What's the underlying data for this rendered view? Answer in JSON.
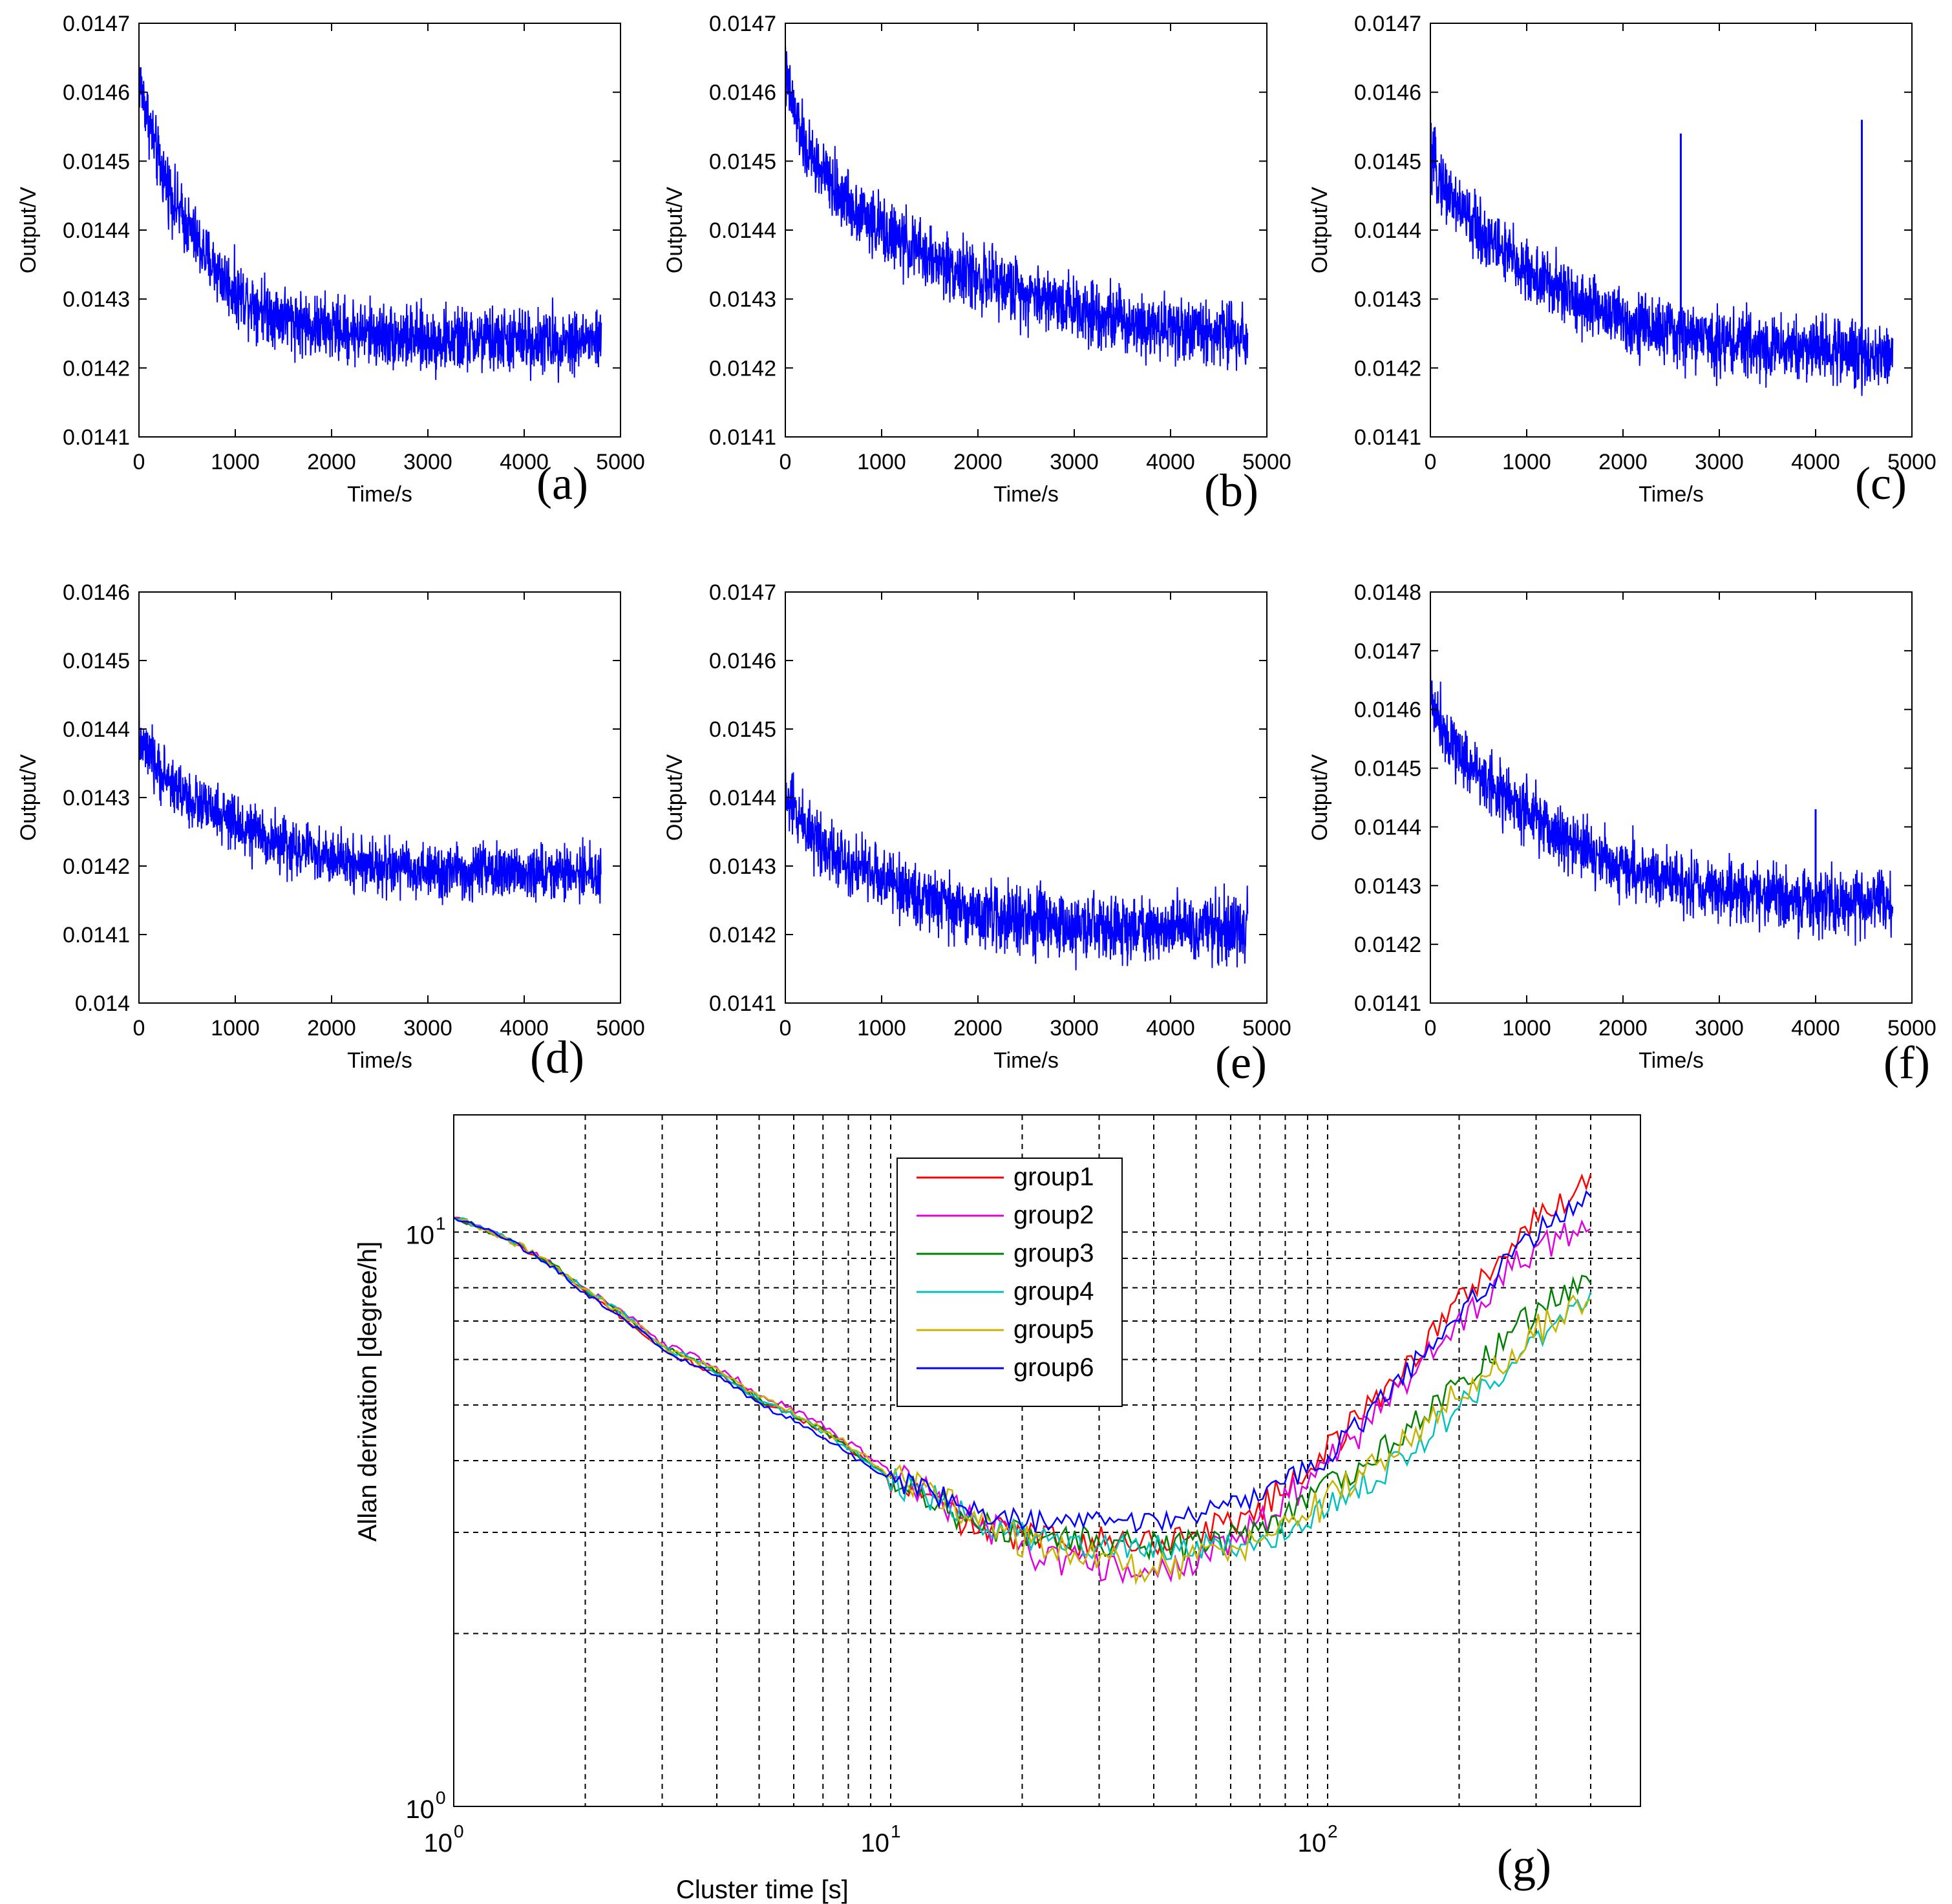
{
  "colors": {
    "trace": "#0000ff",
    "axis": "#000000",
    "grid": "#000000",
    "background": "#ffffff"
  },
  "chart_data": [
    {
      "id": "a",
      "type": "line",
      "panel_label": "(a)",
      "xlabel": "Time/s",
      "ylabel": "Output/V",
      "xlim": [
        0,
        5000
      ],
      "ylim": [
        0.0141,
        0.0147
      ],
      "xticks": [
        "0",
        "1000",
        "2000",
        "3000",
        "4000",
        "5000"
      ],
      "yticks": [
        "0.0141",
        "0.0142",
        "0.0143",
        "0.0144",
        "0.0145",
        "0.0146",
        "0.0147"
      ],
      "series": [
        {
          "name": "output",
          "x": [
            0,
            200,
            400,
            700,
            1000,
            1400,
            1800,
            2400,
            3000,
            3600,
            4200,
            4800
          ],
          "values": [
            0.01462,
            0.0145,
            0.01443,
            0.01436,
            0.01431,
            0.01428,
            0.01426,
            0.01425,
            0.01424,
            0.01424,
            0.01424,
            0.01424
          ],
          "noise": 7e-05,
          "start": 0.01464
        }
      ]
    },
    {
      "id": "b",
      "type": "line",
      "panel_label": "(b)",
      "xlabel": "Time/s",
      "ylabel": "Output/V",
      "xlim": [
        0,
        5000
      ],
      "ylim": [
        0.0141,
        0.0147
      ],
      "xticks": [
        "0",
        "1000",
        "2000",
        "3000",
        "4000",
        "5000"
      ],
      "yticks": [
        "0.0141",
        "0.0142",
        "0.0143",
        "0.0144",
        "0.0145",
        "0.0146",
        "0.0147"
      ],
      "series": [
        {
          "name": "output",
          "x": [
            0,
            200,
            500,
            1000,
            1500,
            2000,
            2500,
            3000,
            3500,
            4000,
            4500,
            4800
          ],
          "values": [
            0.01462,
            0.01452,
            0.01446,
            0.0144,
            0.01436,
            0.01433,
            0.01431,
            0.01429,
            0.01427,
            0.01426,
            0.01425,
            0.01425
          ],
          "noise": 7e-05,
          "start": 0.01467
        }
      ]
    },
    {
      "id": "c",
      "type": "line",
      "panel_label": "(c)",
      "xlabel": "Time/s",
      "ylabel": "Output/V",
      "xlim": [
        0,
        5000
      ],
      "ylim": [
        0.0141,
        0.0147
      ],
      "xticks": [
        "0",
        "1000",
        "2000",
        "3000",
        "4000",
        "5000"
      ],
      "yticks": [
        "0.0141",
        "0.0142",
        "0.0143",
        "0.0144",
        "0.0145",
        "0.0146",
        "0.0147"
      ],
      "series": [
        {
          "name": "output",
          "x": [
            0,
            200,
            500,
            1000,
            1500,
            2000,
            2500,
            3000,
            3500,
            4000,
            4500,
            4800
          ],
          "values": [
            0.0145,
            0.01445,
            0.0144,
            0.01434,
            0.0143,
            0.01427,
            0.01425,
            0.01424,
            0.01423,
            0.01423,
            0.01422,
            0.01422
          ],
          "noise": 7e-05,
          "start": 0.0146,
          "spikes": [
            {
              "x": 2600,
              "y": 0.01454
            },
            {
              "x": 4480,
              "y": 0.01456
            }
          ]
        }
      ]
    },
    {
      "id": "d",
      "type": "line",
      "panel_label": "(d)",
      "xlabel": "Time/s",
      "ylabel": "Output/V",
      "xlim": [
        0,
        5000
      ],
      "ylim": [
        0.014,
        0.0146
      ],
      "xticks": [
        "0",
        "1000",
        "2000",
        "3000",
        "4000",
        "5000"
      ],
      "yticks": [
        "0.014",
        "0.0141",
        "0.0142",
        "0.0143",
        "0.0144",
        "0.0145",
        "0.0146"
      ],
      "series": [
        {
          "name": "output",
          "x": [
            0,
            200,
            500,
            1000,
            1500,
            2000,
            2500,
            3000,
            3500,
            4000,
            4500,
            4800
          ],
          "values": [
            0.01438,
            0.01434,
            0.0143,
            0.01426,
            0.01423,
            0.01421,
            0.0142,
            0.01419,
            0.01419,
            0.01419,
            0.01419,
            0.01419
          ],
          "noise": 6e-05,
          "start": 0.01451
        }
      ]
    },
    {
      "id": "e",
      "type": "line",
      "panel_label": "(e)",
      "xlabel": "Time/s",
      "ylabel": "Output/V",
      "xlim": [
        0,
        5000
      ],
      "ylim": [
        0.0141,
        0.0147
      ],
      "xticks": [
        "0",
        "1000",
        "2000",
        "3000",
        "4000",
        "5000"
      ],
      "yticks": [
        "0.0141",
        "0.0142",
        "0.0143",
        "0.0144",
        "0.0145",
        "0.0146",
        "0.0147"
      ],
      "series": [
        {
          "name": "output",
          "x": [
            0,
            200,
            500,
            1000,
            1500,
            2000,
            2500,
            3000,
            3500,
            4000,
            4500,
            4800
          ],
          "values": [
            0.0144,
            0.01436,
            0.01432,
            0.01428,
            0.01425,
            0.01423,
            0.01422,
            0.01421,
            0.01421,
            0.01421,
            0.01421,
            0.01421
          ],
          "noise": 7e-05,
          "start": 0.0145
        }
      ]
    },
    {
      "id": "f",
      "type": "line",
      "panel_label": "(f)",
      "xlabel": "Time/s",
      "ylabel": "Output/V",
      "xlim": [
        0,
        5000
      ],
      "ylim": [
        0.0141,
        0.0148
      ],
      "xticks": [
        "0",
        "1000",
        "2000",
        "3000",
        "4000",
        "5000"
      ],
      "yticks": [
        "0.0141",
        "0.0142",
        "0.0143",
        "0.0144",
        "0.0145",
        "0.0146",
        "0.0147",
        "0.0148"
      ],
      "series": [
        {
          "name": "output",
          "x": [
            0,
            200,
            500,
            1000,
            1500,
            2000,
            2500,
            3000,
            3500,
            4000,
            4500,
            4800
          ],
          "values": [
            0.01462,
            0.01455,
            0.01449,
            0.01442,
            0.01437,
            0.01433,
            0.01431,
            0.01429,
            0.01428,
            0.01427,
            0.01427,
            0.01427
          ],
          "noise": 8e-05,
          "start": 0.01472,
          "spikes": [
            {
              "x": 4000,
              "y": 0.01443
            }
          ]
        }
      ]
    },
    {
      "id": "g",
      "type": "line",
      "scale": "loglog",
      "panel_label": "(g)",
      "xlabel": "Cluster time [s]",
      "ylabel": "Allan derivation [degree/h]",
      "xlim": [
        1,
        520
      ],
      "ylim": [
        1,
        16
      ],
      "xticks": [
        {
          "base": "10",
          "exp": "0"
        },
        {
          "base": "10",
          "exp": "1"
        },
        {
          "base": "10",
          "exp": "2"
        }
      ],
      "yticks": [
        {
          "base": "10",
          "exp": "0"
        },
        {
          "base": "10",
          "exp": "1"
        }
      ],
      "x_grid": [
        2,
        3,
        4,
        5,
        6,
        7,
        8,
        9,
        10,
        20,
        30,
        40,
        50,
        60,
        70,
        80,
        90,
        100,
        200,
        300,
        400
      ],
      "y_grid": [
        2,
        3,
        4,
        5,
        6,
        7,
        8,
        9,
        10
      ],
      "legend_position": "top-center",
      "series": [
        {
          "name": "group1",
          "color": "#ff0000",
          "x": [
            1,
            2,
            3,
            5,
            8,
            10,
            15,
            20,
            30,
            40,
            50,
            70,
            100,
            150,
            200,
            300,
            400
          ],
          "values": [
            10.6,
            7.8,
            6.2,
            5.1,
            4.2,
            3.7,
            3.1,
            2.95,
            2.9,
            2.9,
            3.0,
            3.3,
            4.2,
            5.8,
            7.6,
            10.5,
            12.5
          ],
          "noise": 0.06
        },
        {
          "name": "group2",
          "color": "#e000e0",
          "x": [
            1,
            2,
            3,
            5,
            8,
            10,
            15,
            20,
            30,
            40,
            50,
            70,
            100,
            150,
            200,
            300,
            400
          ],
          "values": [
            10.6,
            7.9,
            6.4,
            5.2,
            4.3,
            3.8,
            3.2,
            2.8,
            2.6,
            2.55,
            2.7,
            3.1,
            4.0,
            5.4,
            7.0,
            9.4,
            10.4
          ],
          "noise": 0.07
        },
        {
          "name": "group3",
          "color": "#008000",
          "x": [
            1,
            2,
            3,
            5,
            8,
            10,
            15,
            20,
            30,
            40,
            50,
            70,
            100,
            150,
            200,
            300,
            400
          ],
          "values": [
            10.6,
            7.9,
            6.3,
            5.1,
            4.2,
            3.7,
            3.15,
            2.95,
            2.9,
            2.85,
            2.85,
            3.0,
            3.6,
            4.5,
            5.5,
            7.3,
            8.6
          ],
          "noise": 0.06
        },
        {
          "name": "group4",
          "color": "#00c0c0",
          "x": [
            1,
            2,
            3,
            5,
            8,
            10,
            15,
            20,
            30,
            40,
            50,
            70,
            100,
            150,
            200,
            300,
            400
          ],
          "values": [
            10.6,
            7.9,
            6.3,
            5.1,
            4.2,
            3.7,
            3.2,
            2.95,
            2.85,
            2.8,
            2.8,
            2.9,
            3.3,
            4.1,
            5.0,
            6.4,
            7.6
          ],
          "noise": 0.06
        },
        {
          "name": "group5",
          "color": "#c8b400",
          "x": [
            1,
            2,
            3,
            5,
            8,
            10,
            15,
            20,
            30,
            40,
            50,
            70,
            100,
            150,
            200,
            300,
            400
          ],
          "values": [
            10.6,
            7.9,
            6.3,
            5.15,
            4.25,
            3.75,
            3.2,
            2.9,
            2.7,
            2.6,
            2.7,
            2.9,
            3.4,
            4.3,
            5.3,
            6.7,
            7.6
          ],
          "noise": 0.07
        },
        {
          "name": "group6",
          "color": "#0000ff",
          "x": [
            1,
            2,
            3,
            5,
            8,
            10,
            15,
            20,
            30,
            40,
            50,
            70,
            100,
            150,
            200,
            300,
            400
          ],
          "values": [
            10.6,
            7.8,
            6.2,
            5.0,
            4.1,
            3.7,
            3.3,
            3.15,
            3.1,
            3.1,
            3.2,
            3.45,
            4.1,
            5.6,
            7.3,
            10.0,
            11.8
          ],
          "noise": 0.05
        }
      ]
    }
  ]
}
